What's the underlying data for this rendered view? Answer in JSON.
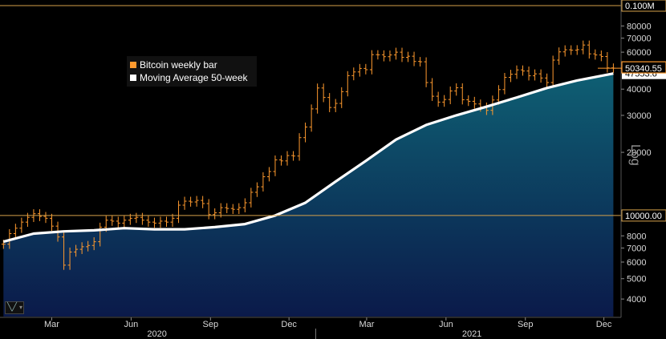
{
  "chart_data": {
    "type": "bar",
    "scale": "log",
    "series": [
      {
        "name": "Bitcoin weekly bar",
        "color": "#ff9a2e",
        "x": [
          "2020-01-05",
          "2020-01-12",
          "2020-01-19",
          "2020-01-26",
          "2020-02-02",
          "2020-02-09",
          "2020-02-16",
          "2020-02-23",
          "2020-03-01",
          "2020-03-08",
          "2020-03-15",
          "2020-03-22",
          "2020-03-29",
          "2020-04-05",
          "2020-04-12",
          "2020-04-19",
          "2020-04-26",
          "2020-05-03",
          "2020-05-10",
          "2020-05-17",
          "2020-05-24",
          "2020-05-31",
          "2020-06-07",
          "2020-06-14",
          "2020-06-21",
          "2020-06-28",
          "2020-07-05",
          "2020-07-12",
          "2020-07-19",
          "2020-07-26",
          "2020-08-02",
          "2020-08-09",
          "2020-08-16",
          "2020-08-23",
          "2020-08-30",
          "2020-09-06",
          "2020-09-13",
          "2020-09-20",
          "2020-09-27",
          "2020-10-04",
          "2020-10-11",
          "2020-10-18",
          "2020-10-25",
          "2020-11-01",
          "2020-11-08",
          "2020-11-15",
          "2020-11-22",
          "2020-11-29",
          "2020-12-06",
          "2020-12-13",
          "2020-12-20",
          "2020-12-27",
          "2021-01-03",
          "2021-01-10",
          "2021-01-17",
          "2021-01-24",
          "2021-01-31",
          "2021-02-07",
          "2021-02-14",
          "2021-02-21",
          "2021-02-28",
          "2021-03-07",
          "2021-03-14",
          "2021-03-21",
          "2021-03-28",
          "2021-04-04",
          "2021-04-11",
          "2021-04-18",
          "2021-04-25",
          "2021-05-02",
          "2021-05-09",
          "2021-05-16",
          "2021-05-23",
          "2021-05-30",
          "2021-06-06",
          "2021-06-13",
          "2021-06-20",
          "2021-06-27",
          "2021-07-04",
          "2021-07-11",
          "2021-07-18",
          "2021-07-25",
          "2021-08-01",
          "2021-08-08",
          "2021-08-15",
          "2021-08-22",
          "2021-08-29",
          "2021-09-05",
          "2021-09-12",
          "2021-09-19",
          "2021-09-26",
          "2021-10-03",
          "2021-10-10",
          "2021-10-17",
          "2021-10-24",
          "2021-10-31",
          "2021-11-07",
          "2021-11-14",
          "2021-11-21",
          "2021-11-28",
          "2021-12-05",
          "2021-12-12"
        ],
        "close": [
          7300,
          8200,
          8700,
          9300,
          9800,
          10200,
          9900,
          9700,
          8900,
          7900,
          5800,
          6700,
          6900,
          7100,
          7200,
          7500,
          8800,
          9500,
          9400,
          9200,
          9500,
          9700,
          9800,
          9500,
          9300,
          9200,
          9400,
          9300,
          9700,
          11200,
          11700,
          11600,
          11800,
          11400,
          10100,
          10300,
          10900,
          10800,
          10700,
          10900,
          11500,
          12900,
          13700,
          15300,
          16200,
          18400,
          18200,
          19300,
          19200,
          23500,
          26400,
          32200,
          40500,
          36500,
          32700,
          34200,
          38900,
          46400,
          48300,
          50200,
          49500,
          58400,
          58300,
          57100,
          58200,
          60000,
          56700,
          57400,
          54200,
          54000,
          43000,
          37000,
          34700,
          35700,
          39200,
          40600,
          35600,
          35000,
          34000,
          32900,
          31700,
          35500,
          39800,
          45500,
          47100,
          49400,
          48800,
          46300,
          47300,
          45200,
          43000,
          55000,
          60200,
          61600,
          61300,
          61700,
          64900,
          58900,
          58200,
          57200,
          50500,
          50340
        ]
      },
      {
        "name": "Moving Average 50-week",
        "color": "#ffffff",
        "x": [
          "2020-01-05",
          "2020-02-09",
          "2020-03-15",
          "2020-04-19",
          "2020-05-24",
          "2020-06-28",
          "2020-08-02",
          "2020-09-06",
          "2020-10-11",
          "2020-11-15",
          "2020-12-20",
          "2021-01-24",
          "2021-02-28",
          "2021-04-04",
          "2021-05-09",
          "2021-06-13",
          "2021-07-18",
          "2021-08-22",
          "2021-09-26",
          "2021-10-31",
          "2021-12-12"
        ],
        "values": [
          7500,
          8200,
          8400,
          8500,
          8700,
          8600,
          8600,
          8800,
          9100,
          10000,
          11500,
          14500,
          18200,
          23000,
          27000,
          30000,
          33000,
          36500,
          40500,
          44000,
          47500
        ]
      }
    ],
    "ylim": [
      3300,
      100000
    ],
    "ytick_values": [
      4000,
      5000,
      6000,
      7000,
      8000,
      20000,
      30000,
      40000,
      50000,
      60000,
      70000,
      80000
    ],
    "ytick_labels": [
      "4000",
      "5000",
      "6000",
      "7000",
      "8000",
      "20000",
      "30000",
      "40000",
      "50000",
      "60000",
      "70000",
      "80000"
    ],
    "reference_lines": [
      {
        "value": 100000,
        "label": "0.100M"
      },
      {
        "value": 10000,
        "label": "10000.00"
      }
    ],
    "last_price_label": "50340.55",
    "ma_price_label": "47553.6",
    "xticks": [
      {
        "date": "2020-03-01",
        "label": "Mar"
      },
      {
        "date": "2020-06-01",
        "label": "Jun"
      },
      {
        "date": "2020-09-01",
        "label": "Sep"
      },
      {
        "date": "2020-12-01",
        "label": "Dec"
      },
      {
        "date": "2021-03-01",
        "label": "Mar"
      },
      {
        "date": "2021-06-01",
        "label": "Jun"
      },
      {
        "date": "2021-09-01",
        "label": "Sep"
      },
      {
        "date": "2021-12-01",
        "label": "Dec"
      }
    ],
    "year_labels": [
      {
        "date": "2020-07-01",
        "label": "2020"
      },
      {
        "date": "2021-07-01",
        "label": "2021"
      }
    ],
    "ylabel": "Log",
    "legend_position": "top-left"
  },
  "legend": {
    "bar_label": "Bitcoin weekly bar",
    "ma_label": "Moving Average 50-week"
  },
  "colors": {
    "bar": "#ff9a2e",
    "ma": "#ffffff",
    "area_top": "#0e5f73",
    "area_bottom": "#0b1a4a",
    "refline": "#d4a14a",
    "axis_text": "#d8d8d8"
  }
}
